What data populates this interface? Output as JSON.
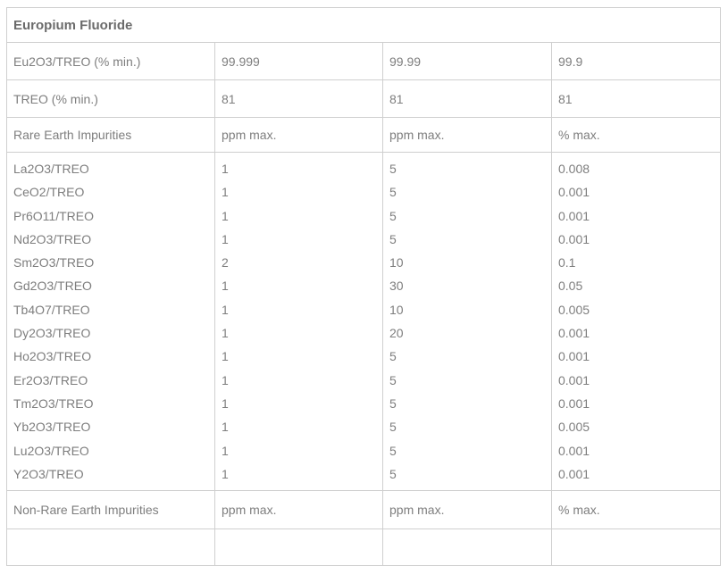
{
  "colors": {
    "text": "#7e7e7e",
    "title_text": "#6b6b6b",
    "border": "#cfcfcf",
    "background": "#ffffff"
  },
  "table": {
    "title": "Europium Fluoride",
    "spec_rows": [
      {
        "label": "Eu2O3/TREO (% min.)",
        "values": [
          "99.999",
          "99.99",
          "99.9"
        ]
      },
      {
        "label": "TREO (% min.)",
        "values": [
          "81",
          "81",
          "81"
        ]
      }
    ],
    "rare_earth_header": {
      "label": "Rare Earth Impurities",
      "values": [
        "ppm max.",
        "ppm max.",
        "% max."
      ]
    },
    "rare_earth_impurities": [
      {
        "name": "La2O3/TREO",
        "values": [
          "1",
          "5",
          "0.008"
        ]
      },
      {
        "name": "CeO2/TREO",
        "values": [
          "1",
          "5",
          "0.001"
        ]
      },
      {
        "name": "Pr6O11/TREO",
        "values": [
          "1",
          "5",
          "0.001"
        ]
      },
      {
        "name": "Nd2O3/TREO",
        "values": [
          "1",
          "5",
          "0.001"
        ]
      },
      {
        "name": "Sm2O3/TREO",
        "values": [
          "2",
          "10",
          "0.1"
        ]
      },
      {
        "name": "Gd2O3/TREO",
        "values": [
          "1",
          "30",
          "0.05"
        ]
      },
      {
        "name": "Tb4O7/TREO",
        "values": [
          "1",
          "10",
          "0.005"
        ]
      },
      {
        "name": "Dy2O3/TREO",
        "values": [
          "1",
          "20",
          "0.001"
        ]
      },
      {
        "name": "Ho2O3/TREO",
        "values": [
          "1",
          "5",
          "0.001"
        ]
      },
      {
        "name": "Er2O3/TREO",
        "values": [
          "1",
          "5",
          "0.001"
        ]
      },
      {
        "name": "Tm2O3/TREO",
        "values": [
          "1",
          "5",
          "0.001"
        ]
      },
      {
        "name": "Yb2O3/TREO",
        "values": [
          "1",
          "5",
          "0.005"
        ]
      },
      {
        "name": "Lu2O3/TREO",
        "values": [
          "1",
          "5",
          "0.001"
        ]
      },
      {
        "name": "Y2O3/TREO",
        "values": [
          "1",
          "5",
          "0.001"
        ]
      }
    ],
    "non_rare_earth_header": {
      "label": "Non-Rare Earth Impurities",
      "values": [
        "ppm max.",
        "ppm max.",
        "% max."
      ]
    }
  }
}
